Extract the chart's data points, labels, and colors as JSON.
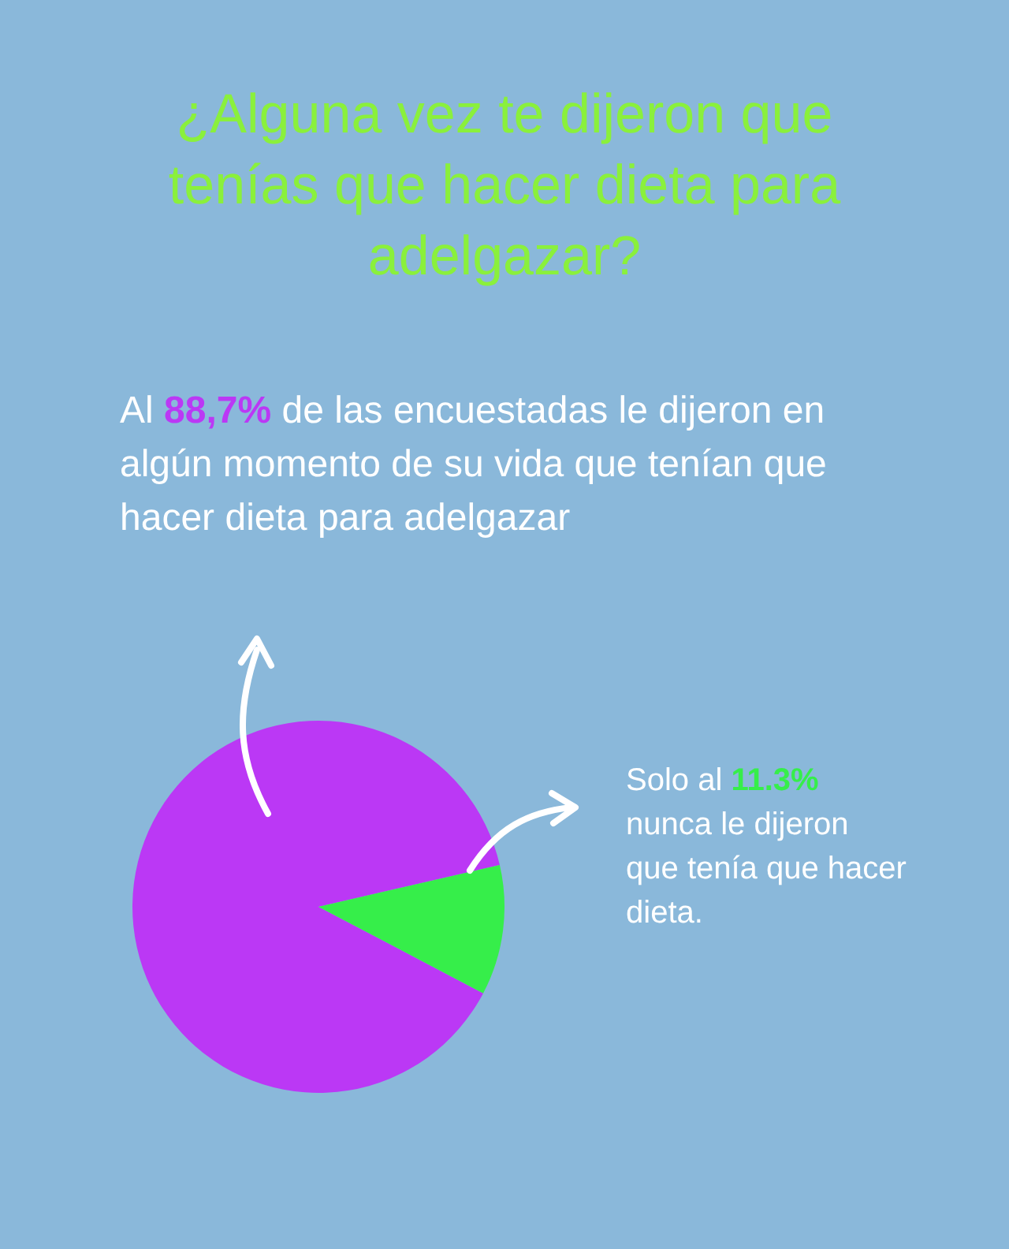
{
  "chart_data": {
    "type": "pie",
    "title": "¿Alguna vez te dijeron que tenías que hacer dieta para adelgazar?",
    "categories": [
      null,
      null
    ],
    "values": [
      88.7,
      11.3
    ],
    "colors": [
      "#bb38f5",
      "#36ee4a"
    ],
    "annotations": [
      "Al 88,7% de las encuestadas le dijeron en algún momento de su vida que tenían que hacer dieta para adelgazar",
      "Solo al 11.3% nunca le dijeron que tenía que hacer dieta."
    ],
    "legend": false
  }
}
